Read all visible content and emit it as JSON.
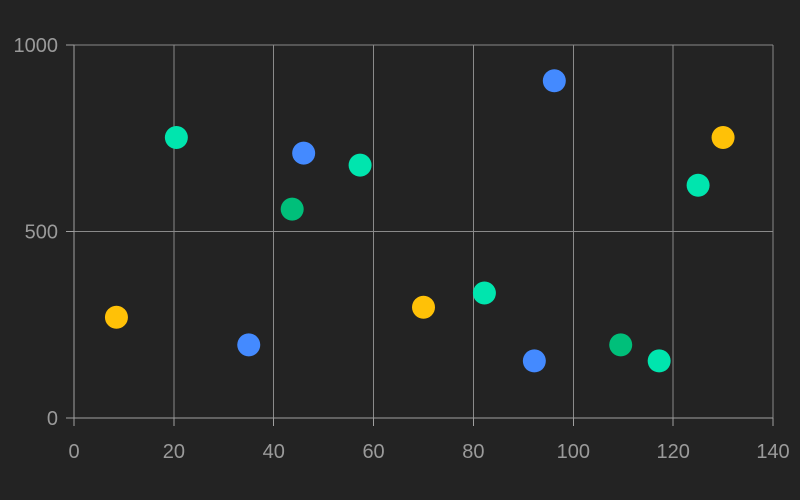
{
  "chart_data": {
    "type": "scatter",
    "title": "",
    "xlabel": "",
    "ylabel": "",
    "xlim": [
      0,
      140
    ],
    "ylim": [
      0,
      1000
    ],
    "x_ticks": [
      0,
      20,
      40,
      60,
      80,
      100,
      120,
      140
    ],
    "y_ticks": [
      0,
      500,
      1000
    ],
    "x_tick_labels": [
      "0",
      "20",
      "40",
      "60",
      "80",
      "100",
      "120",
      "140"
    ],
    "y_tick_labels": [
      "0",
      "500",
      "1000"
    ],
    "grid": true,
    "legend": "none",
    "series": [
      {
        "color": "#FFC107",
        "points": [
          {
            "x": 8.5,
            "y": 270
          },
          {
            "x": 70,
            "y": 297
          },
          {
            "x": 130,
            "y": 752
          }
        ]
      },
      {
        "color": "#00E5AE",
        "points": [
          {
            "x": 20.5,
            "y": 752
          },
          {
            "x": 57.3,
            "y": 678
          },
          {
            "x": 82.2,
            "y": 335
          },
          {
            "x": 117.2,
            "y": 153
          },
          {
            "x": 125,
            "y": 624
          }
        ]
      },
      {
        "color": "#448AFF",
        "points": [
          {
            "x": 35,
            "y": 196
          },
          {
            "x": 46,
            "y": 710
          },
          {
            "x": 92.2,
            "y": 153
          },
          {
            "x": 96.2,
            "y": 904
          }
        ]
      },
      {
        "color": "#00BF7A",
        "points": [
          {
            "x": 43.7,
            "y": 560
          },
          {
            "x": 109.5,
            "y": 196
          }
        ]
      }
    ]
  }
}
